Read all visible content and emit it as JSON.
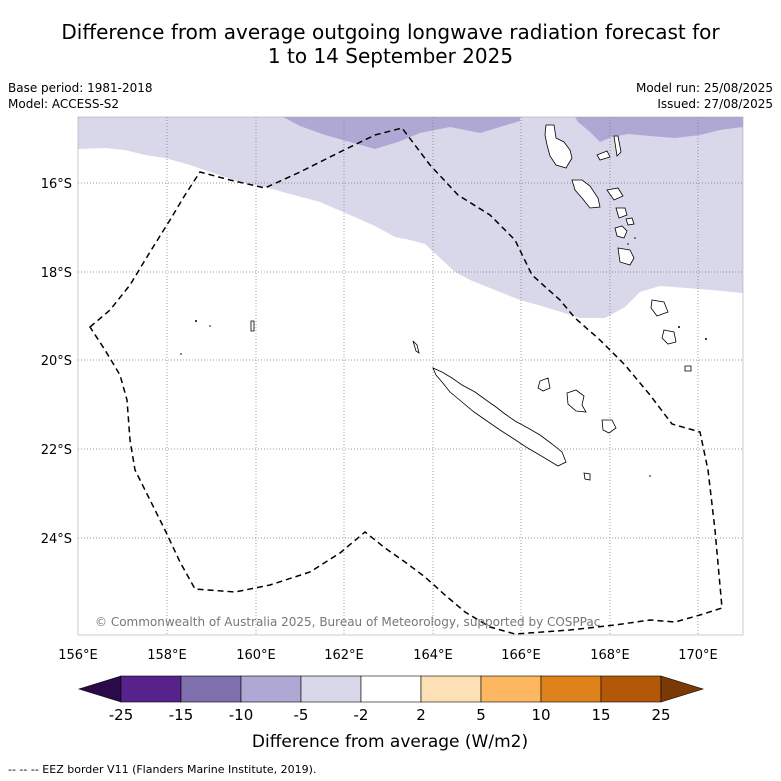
{
  "title_line1": "Difference from average outgoing longwave radiation forecast for",
  "title_line2": "1 to 14 September 2025",
  "base_period": "Base period: 1981-2018",
  "model": "Model: ACCESS-S2",
  "model_run": "Model run: 25/08/2025",
  "issued": "Issued: 27/08/2025",
  "copyright": "© Commonwealth of Australia 2025, Bureau of Meteorology, supported by COSPPac",
  "footnote": "-- -- -- EEZ border V11 (Flanders Marine Institute, 2019).",
  "map": {
    "lon_range": [
      156,
      171
    ],
    "lat_range": [
      -26.2,
      -14.5
    ],
    "lon_ticks": [
      "156°E",
      "158°E",
      "160°E",
      "162°E",
      "164°E",
      "166°E",
      "168°E",
      "170°E"
    ],
    "lat_ticks": [
      "16°S",
      "18°S",
      "20°S",
      "22°S",
      "24°S"
    ]
  },
  "colorbar": {
    "label": "Difference from average (W/m2)",
    "ticks": [
      "-25",
      "-15",
      "-10",
      "-5",
      "-2",
      "2",
      "5",
      "10",
      "15",
      "25"
    ],
    "colors": [
      "#2b0a4a",
      "#58228d",
      "#7f70ad",
      "#b0a8d4",
      "#d9d8eb",
      "#ffffff",
      "#fde0b5",
      "#fdb760",
      "#e0821b",
      "#b25808",
      "#7a3a06"
    ]
  }
}
